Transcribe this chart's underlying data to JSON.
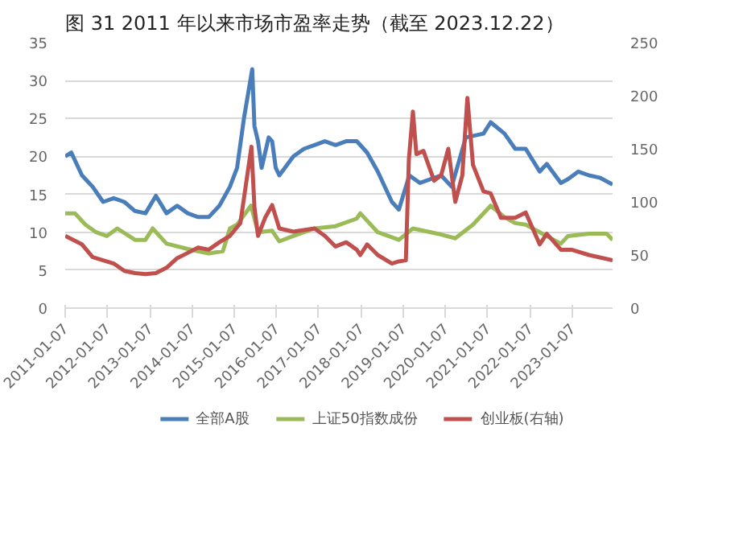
{
  "chart_data": {
    "type": "line",
    "title": "图 31 2011 年以来市场市盈率走势（截至 2023.12.22）",
    "xlim": [
      "2011-01-07",
      "2023-12-22"
    ],
    "xticks": [
      "2011-01-07",
      "2012-01-07",
      "2013-01-07",
      "2014-01-07",
      "2015-01-07",
      "2016-01-07",
      "2017-01-07",
      "2018-01-07",
      "2019-01-07",
      "2020-01-07",
      "2021-01-07",
      "2022-01-07",
      "2023-01-07"
    ],
    "ylim": [
      0,
      35
    ],
    "yticks": [
      0,
      5,
      10,
      15,
      20,
      25,
      30,
      35
    ],
    "y2lim": [
      0,
      250
    ],
    "y2ticks": [
      0,
      50,
      100,
      150,
      200,
      250
    ],
    "grid": "y",
    "legend": "bottom",
    "marker": "none",
    "line_style": "solid",
    "series": [
      {
        "name": "全部A股",
        "color": "#4a7ebb",
        "x": [
          "2011-01-07",
          "2011-03",
          "2011-06",
          "2011-09",
          "2011-12",
          "2012-03",
          "2012-06",
          "2012-09",
          "2012-12",
          "2013-03",
          "2013-06",
          "2013-09",
          "2013-12",
          "2014-03",
          "2014-06",
          "2014-09",
          "2014-12",
          "2015-02",
          "2015-04",
          "2015-06-12",
          "2015-07",
          "2015-08",
          "2015-09",
          "2015-11",
          "2015-12",
          "2016-01",
          "2016-02",
          "2016-06",
          "2016-09",
          "2016-12",
          "2017-03",
          "2017-06",
          "2017-09",
          "2017-12",
          "2018-01",
          "2018-03",
          "2018-06",
          "2018-10",
          "2018-12",
          "2019-03",
          "2019-06",
          "2019-12",
          "2020-03",
          "2020-07",
          "2020-12",
          "2021-02",
          "2021-06",
          "2021-09",
          "2021-12",
          "2022-04",
          "2022-06",
          "2022-10",
          "2022-12",
          "2023-03",
          "2023-06",
          "2023-09",
          "2023-12-22"
        ],
        "values": [
          20,
          20.5,
          17.5,
          16,
          14,
          14.5,
          14,
          12.8,
          12.5,
          14.8,
          12.5,
          13.5,
          12.5,
          12,
          12,
          13.5,
          16,
          18.5,
          25,
          31.5,
          24,
          22,
          18.5,
          22.5,
          22,
          18.5,
          17.5,
          20,
          21,
          21.5,
          22,
          21.5,
          22,
          22,
          21.5,
          20.5,
          18,
          14,
          13,
          17.5,
          16.5,
          17.5,
          16,
          22.5,
          23,
          24.5,
          23,
          21,
          21,
          18,
          19,
          16.5,
          17,
          18,
          17.5,
          17.2,
          16.3
        ]
      },
      {
        "name": "上证50指数成份",
        "color": "#9bbb59",
        "x": [
          "2011-01-07",
          "2011-04",
          "2011-07",
          "2011-10",
          "2012-01",
          "2012-04",
          "2012-09",
          "2012-12",
          "2013-02",
          "2013-06",
          "2013-12",
          "2014-06",
          "2014-10",
          "2014-12",
          "2015-02",
          "2015-06",
          "2015-08",
          "2015-12",
          "2016-02",
          "2016-06",
          "2016-12",
          "2017-06",
          "2017-12",
          "2018-01",
          "2018-06",
          "2018-12",
          "2019-04",
          "2019-12",
          "2020-04",
          "2020-09",
          "2021-02",
          "2021-06",
          "2021-09",
          "2021-12",
          "2022-04",
          "2022-10",
          "2022-12",
          "2023-06",
          "2023-11",
          "2023-12-22"
        ],
        "values": [
          12.5,
          12.5,
          11,
          10,
          9.5,
          10.5,
          9,
          9,
          10.5,
          8.5,
          7.8,
          7.2,
          7.5,
          10.5,
          11,
          13.5,
          10,
          10.2,
          8.8,
          9.5,
          10.5,
          10.8,
          11.8,
          12.5,
          10,
          9,
          10.5,
          9.7,
          9.2,
          11,
          13.5,
          12,
          11.2,
          11,
          10,
          8.5,
          9.5,
          9.8,
          9.8,
          9
        ]
      },
      {
        "name": "创业板(右轴)",
        "color": "#c0504d",
        "axis": "y2",
        "x": [
          "2011-01-07",
          "2011-06",
          "2011-09",
          "2011-12",
          "2012-03",
          "2012-06",
          "2012-09",
          "2012-12",
          "2013-03",
          "2013-06",
          "2013-09",
          "2013-12",
          "2014-03",
          "2014-06",
          "2014-09",
          "2014-12",
          "2015-03",
          "2015-06-05",
          "2015-07",
          "2015-08",
          "2015-10",
          "2015-12",
          "2016-02",
          "2016-06",
          "2016-12",
          "2017-03",
          "2017-06",
          "2017-09",
          "2017-12",
          "2018-01",
          "2018-03",
          "2018-06",
          "2018-10",
          "2018-12",
          "2019-01-30",
          "2019-02-25",
          "2019-04",
          "2019-05",
          "2019-07",
          "2019-10",
          "2019-12",
          "2020-02",
          "2020-04",
          "2020-06",
          "2020-07-15",
          "2020-09",
          "2020-12",
          "2021-02",
          "2021-05",
          "2021-09",
          "2021-12",
          "2022-04",
          "2022-06",
          "2022-10",
          "2023-01",
          "2023-06",
          "2023-12-22"
        ],
        "values": [
          68,
          60,
          48,
          45,
          42,
          35,
          33,
          32,
          33,
          38,
          47,
          52,
          57,
          55,
          62,
          68,
          80,
          152,
          95,
          68,
          85,
          97,
          75,
          72,
          75,
          68,
          58,
          62,
          55,
          50,
          60,
          50,
          42,
          44,
          45,
          140,
          185,
          145,
          148,
          120,
          125,
          150,
          100,
          125,
          198,
          135,
          110,
          108,
          85,
          85,
          90,
          60,
          70,
          55,
          55,
          50,
          45
        ]
      }
    ]
  }
}
